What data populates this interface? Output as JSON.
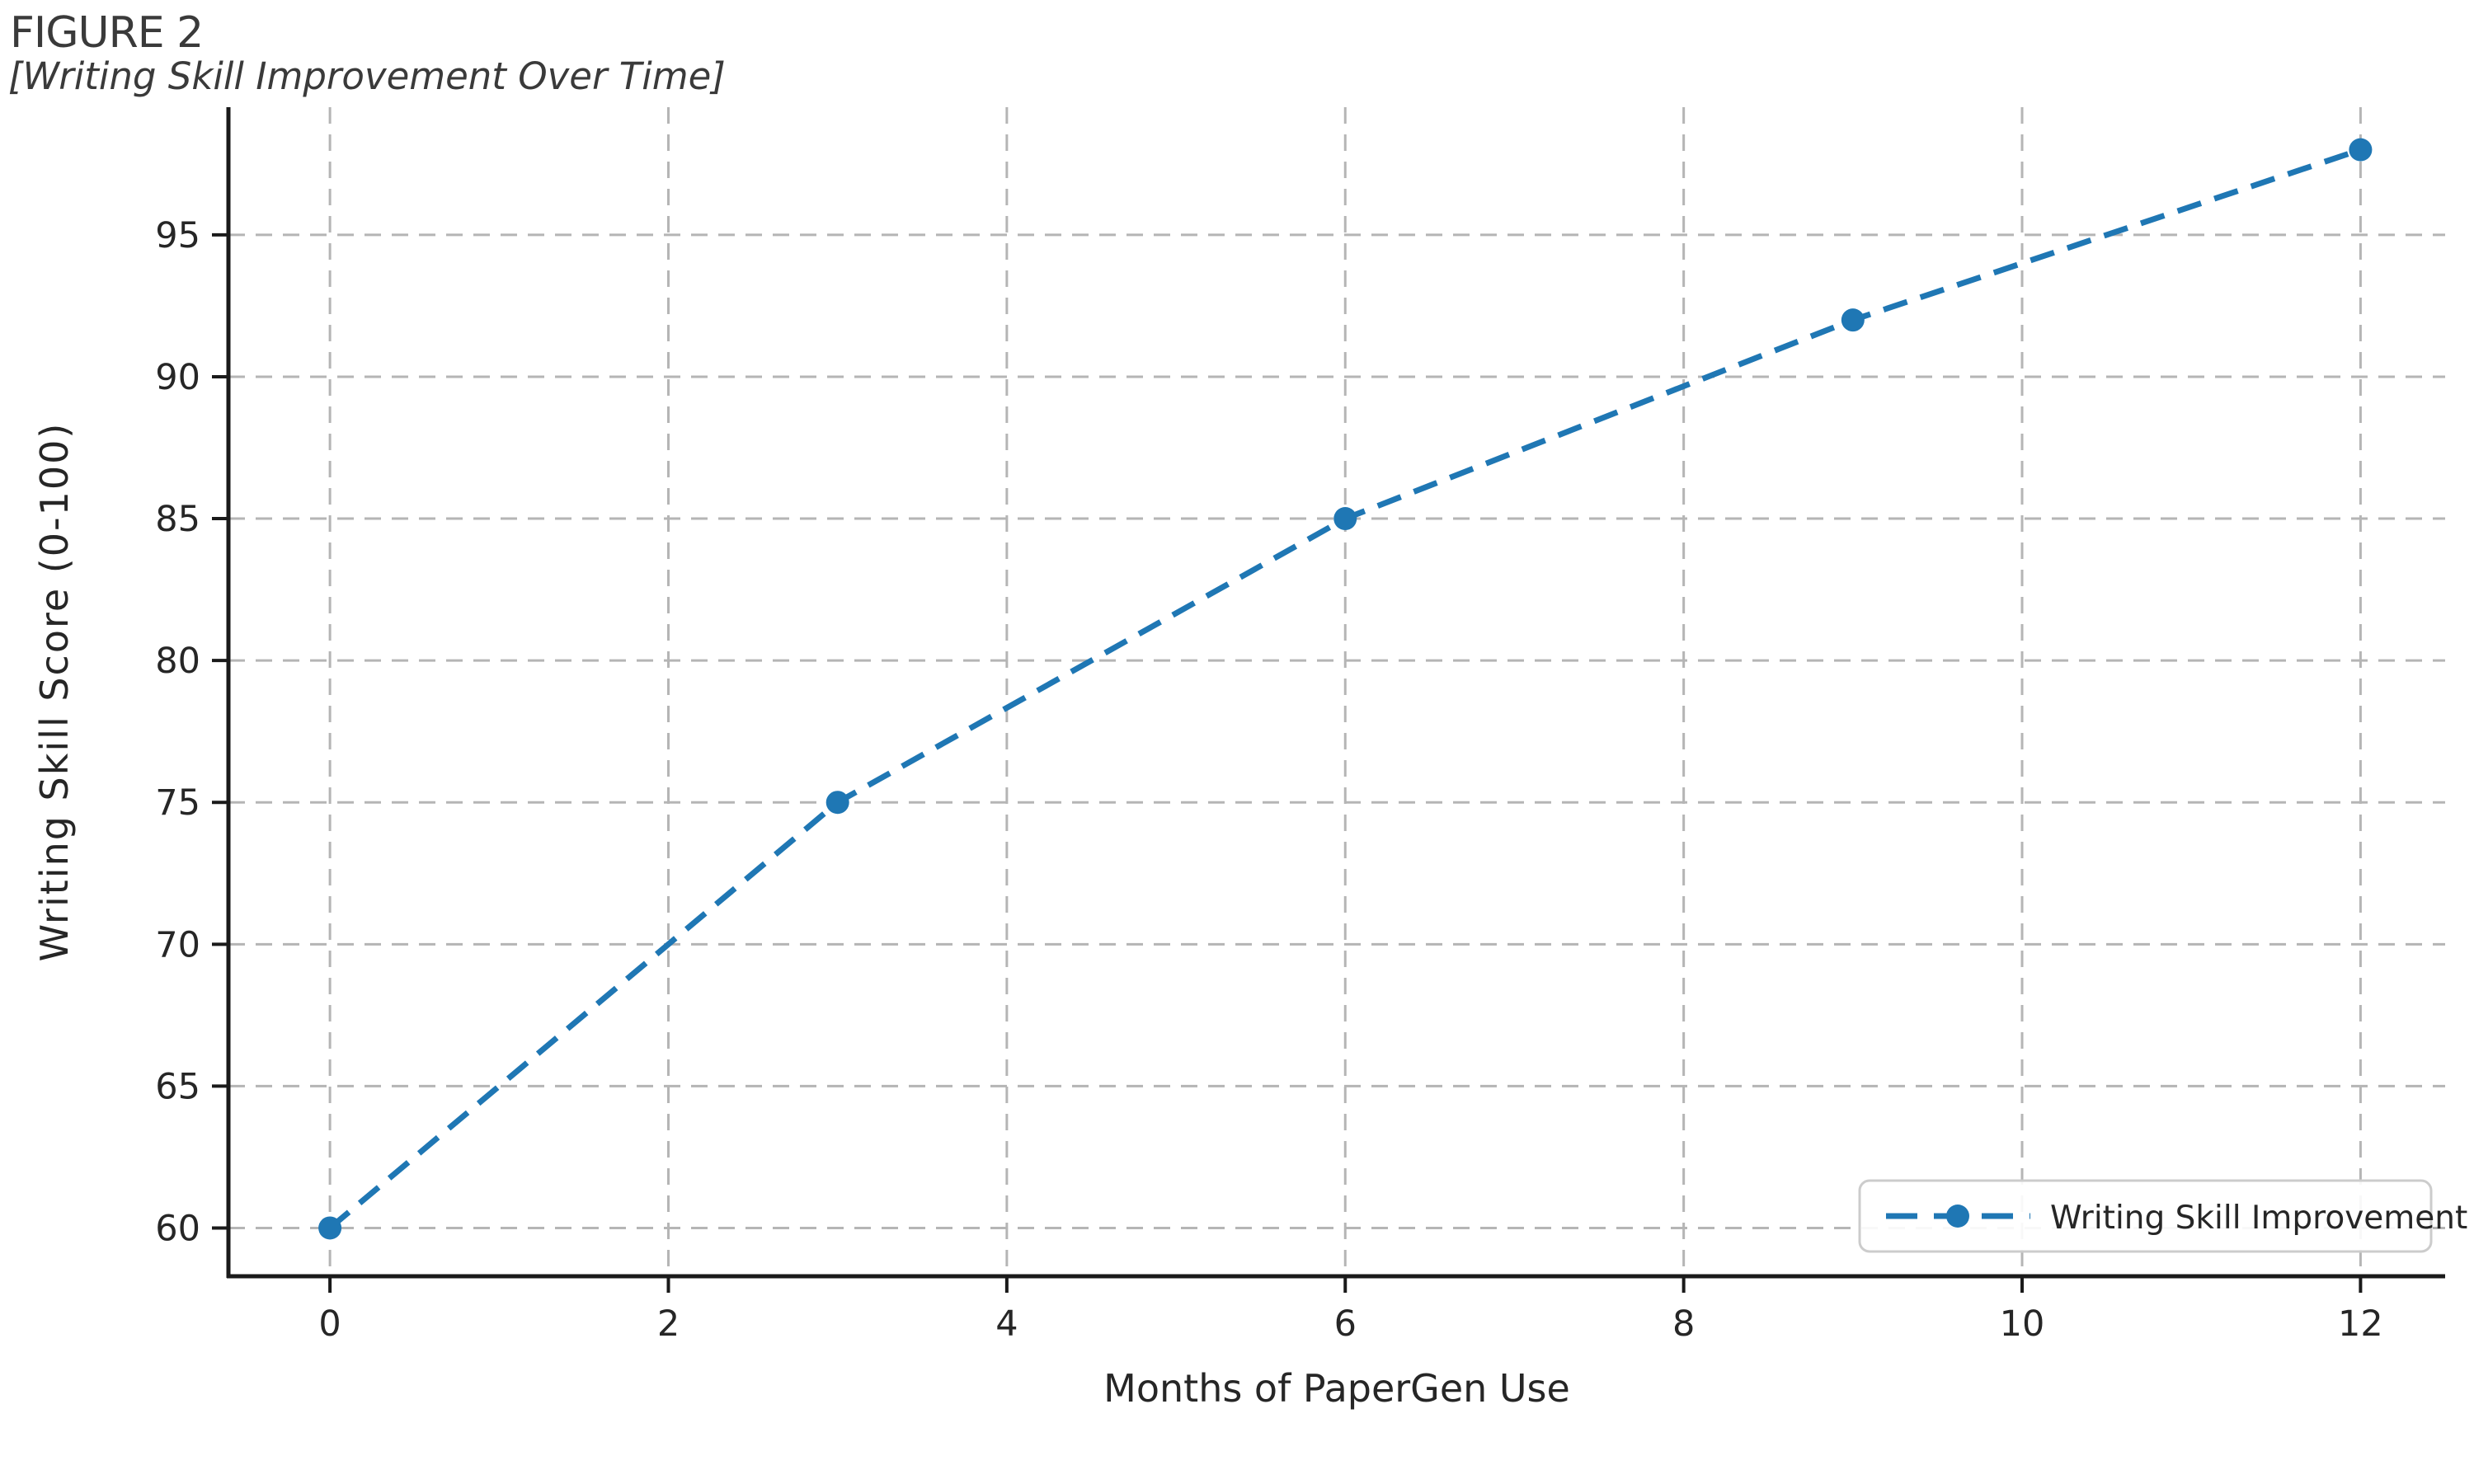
{
  "figure": {
    "title": "FIGURE 2",
    "subtitle": "[Writing Skill Improvement Over Time]"
  },
  "chart_data": {
    "type": "line",
    "title": "FIGURE 2",
    "subtitle": "[Writing Skill Improvement Over Time]",
    "xlabel": "Months of PaperGen Use",
    "ylabel": "Writing Skill Score (0-100)",
    "series": [
      {
        "name": "Writing Skill Improvement",
        "x": [
          0,
          3,
          6,
          9,
          12
        ],
        "y": [
          60,
          75,
          85,
          92,
          98
        ],
        "line_style": "dashed",
        "marker": "circle"
      }
    ],
    "xticks": [
      0,
      2,
      4,
      6,
      8,
      10,
      12
    ],
    "yticks": [
      60,
      65,
      70,
      75,
      80,
      85,
      90,
      95
    ],
    "xlim": [
      -0.6,
      12.5
    ],
    "ylim": [
      58.3,
      99.5
    ],
    "grid": true,
    "grid_style": "dashed",
    "legend": {
      "label": "Writing Skill Improvement",
      "position": "lower right"
    },
    "colors": {
      "line": "#1f77b4",
      "grid": "#b5b5b5",
      "spine": "#1a1a1a",
      "tick_text": "#262626",
      "title_text": "#3a3a3a",
      "legend_border": "#cccccc",
      "legend_bg": "#ffffff",
      "background": "#ffffff"
    }
  }
}
